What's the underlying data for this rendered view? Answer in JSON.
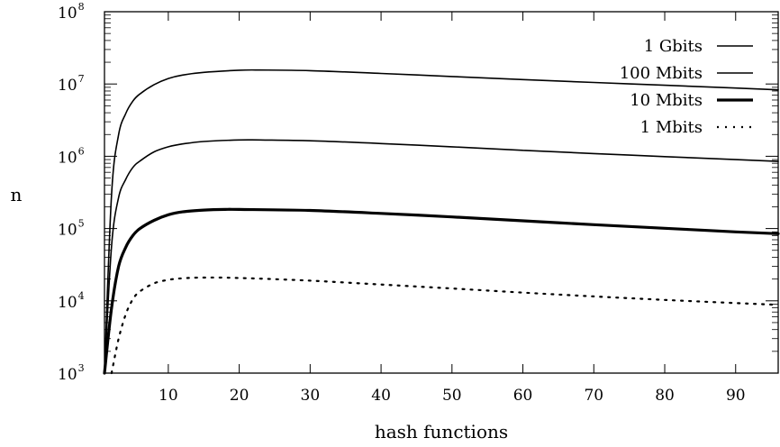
{
  "chart_data": {
    "type": "line",
    "title": "",
    "xlabel": "hash functions",
    "ylabel": "n",
    "xlim": [
      1,
      96
    ],
    "ylim": [
      1000,
      100000000
    ],
    "yscale": "log",
    "grid": false,
    "legend_position": "top-right",
    "x_ticks": [
      10,
      20,
      30,
      40,
      50,
      60,
      70,
      80,
      90
    ],
    "y_ticks": [
      {
        "value": 1000,
        "base": "10",
        "exp": "3"
      },
      {
        "value": 10000,
        "base": "10",
        "exp": "4"
      },
      {
        "value": 100000,
        "base": "10",
        "exp": "5"
      },
      {
        "value": 1000000,
        "base": "10",
        "exp": "6"
      },
      {
        "value": 10000000,
        "base": "10",
        "exp": "7"
      },
      {
        "value": 100000000,
        "base": "10",
        "exp": "8"
      }
    ],
    "series": [
      {
        "name": "1 Gbits",
        "style": "solid",
        "x": [
          1,
          2,
          3,
          4,
          5,
          6,
          8,
          10,
          12,
          15,
          20,
          23,
          30,
          40,
          50,
          60,
          70,
          80,
          90,
          96
        ],
        "y": [
          1000,
          300000,
          2000000,
          3900000,
          5800000,
          7300000,
          9800000,
          11900000,
          13300000,
          14500000,
          15500000,
          15600000,
          15300000,
          14000000,
          12700000,
          11500000,
          10500000,
          9600000,
          8800000,
          8300000
        ]
      },
      {
        "name": "100 Mbits",
        "style": "solid",
        "x": [
          1,
          2,
          3,
          4,
          5,
          6,
          8,
          10,
          12,
          15,
          20,
          23,
          30,
          40,
          50,
          60,
          70,
          80,
          90,
          96
        ],
        "y": [
          1000,
          58000,
          270000,
          480000,
          700000,
          860000,
          1150000,
          1350000,
          1480000,
          1600000,
          1680000,
          1680000,
          1640000,
          1500000,
          1350000,
          1210000,
          1090000,
          990000,
          900000,
          850000
        ]
      },
      {
        "name": "10 Mbits",
        "style": "thick",
        "x": [
          1,
          2,
          3,
          4,
          5,
          6,
          8,
          10,
          12,
          15,
          18,
          20,
          30,
          40,
          50,
          60,
          70,
          80,
          90,
          96
        ],
        "y": [
          1000,
          8000,
          30000,
          55000,
          80000,
          100000,
          130000,
          155000,
          170000,
          180000,
          184000,
          184000,
          178000,
          162000,
          145000,
          128000,
          113000,
          101000,
          90000,
          85000
        ]
      },
      {
        "name": "1 Mbits",
        "style": "dotted",
        "x": [
          2,
          3,
          4,
          5,
          6,
          8,
          10,
          12,
          15,
          20,
          30,
          40,
          50,
          60,
          70,
          80,
          90,
          96
        ],
        "y": [
          1000,
          3000,
          6500,
          10500,
          13500,
          17500,
          19500,
          20500,
          21000,
          20700,
          19000,
          16800,
          14800,
          13000,
          11500,
          10300,
          9300,
          8800
        ]
      }
    ]
  }
}
